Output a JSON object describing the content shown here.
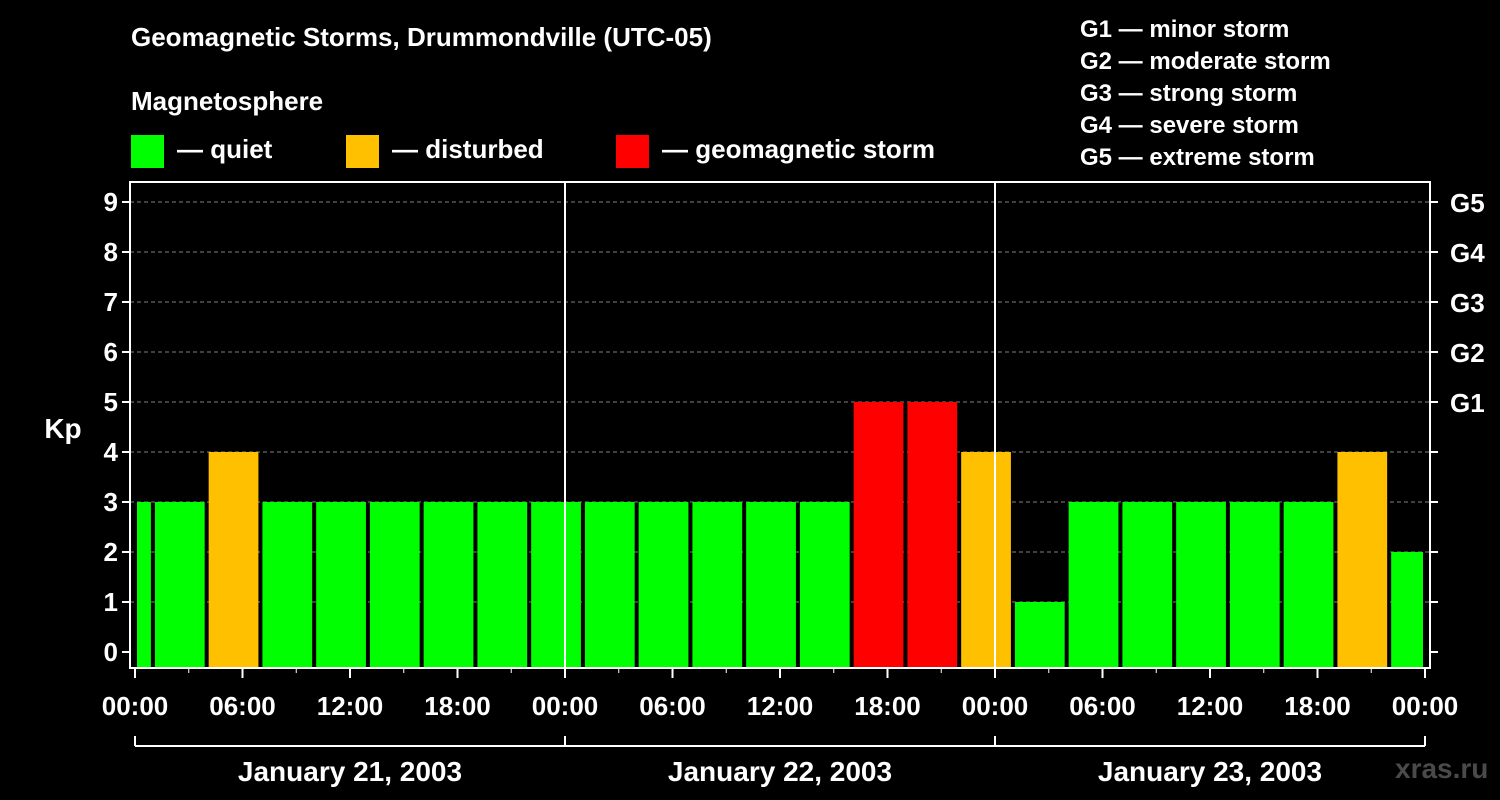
{
  "title": "Geomagnetic Storms, Drummondville (UTC-05)",
  "legend": {
    "heading": "Magnetosphere",
    "items": [
      {
        "label": "— quiet",
        "color": "#00ff00"
      },
      {
        "label": "— disturbed",
        "color": "#ffc000"
      },
      {
        "label": "— geomagnetic storm",
        "color": "#ff0000"
      }
    ]
  },
  "storm_scale": [
    "G1 — minor storm",
    "G2 — moderate storm",
    "G3 — strong storm",
    "G4 — severe storm",
    "G5 — extreme storm"
  ],
  "watermark": "xras.ru",
  "colors": {
    "quiet": "#00ff00",
    "disturbed": "#ffc000",
    "storm": "#ff0000",
    "background": "#000000",
    "grid": "#808080"
  },
  "chart_data": {
    "type": "bar",
    "ylabel": "Kp",
    "ylim": [
      0,
      9
    ],
    "yticks": [
      0,
      1,
      2,
      3,
      4,
      5,
      6,
      7,
      8,
      9
    ],
    "right_axis_labels": [
      {
        "kp": 5,
        "label": "G1"
      },
      {
        "kp": 6,
        "label": "G2"
      },
      {
        "kp": 7,
        "label": "G3"
      },
      {
        "kp": 8,
        "label": "G4"
      },
      {
        "kp": 9,
        "label": "G5"
      }
    ],
    "xlim_hours": [
      0,
      72
    ],
    "xticks": [
      {
        "hour": 0,
        "label": "00:00"
      },
      {
        "hour": 6,
        "label": "06:00"
      },
      {
        "hour": 12,
        "label": "12:00"
      },
      {
        "hour": 18,
        "label": "18:00"
      },
      {
        "hour": 24,
        "label": "00:00"
      },
      {
        "hour": 30,
        "label": "06:00"
      },
      {
        "hour": 36,
        "label": "12:00"
      },
      {
        "hour": 42,
        "label": "18:00"
      },
      {
        "hour": 48,
        "label": "00:00"
      },
      {
        "hour": 54,
        "label": "06:00"
      },
      {
        "hour": 60,
        "label": "12:00"
      },
      {
        "hour": 66,
        "label": "18:00"
      },
      {
        "hour": 72,
        "label": "00:00"
      }
    ],
    "day_separators_hours": [
      24,
      48
    ],
    "days": [
      {
        "label": "January 21, 2003",
        "start_hour": 0,
        "end_hour": 24
      },
      {
        "label": "January 22, 2003",
        "start_hour": 24,
        "end_hour": 48
      },
      {
        "label": "January 23, 2003",
        "start_hour": 48,
        "end_hour": 72
      }
    ],
    "bars": [
      {
        "start_hour": 0,
        "end_hour": 1,
        "kp": 3,
        "level": "quiet"
      },
      {
        "start_hour": 1,
        "end_hour": 4,
        "kp": 3,
        "level": "quiet"
      },
      {
        "start_hour": 4,
        "end_hour": 7,
        "kp": 4,
        "level": "disturbed"
      },
      {
        "start_hour": 7,
        "end_hour": 10,
        "kp": 3,
        "level": "quiet"
      },
      {
        "start_hour": 10,
        "end_hour": 13,
        "kp": 3,
        "level": "quiet"
      },
      {
        "start_hour": 13,
        "end_hour": 16,
        "kp": 3,
        "level": "quiet"
      },
      {
        "start_hour": 16,
        "end_hour": 19,
        "kp": 3,
        "level": "quiet"
      },
      {
        "start_hour": 19,
        "end_hour": 22,
        "kp": 3,
        "level": "quiet"
      },
      {
        "start_hour": 22,
        "end_hour": 25,
        "kp": 3,
        "level": "quiet"
      },
      {
        "start_hour": 25,
        "end_hour": 28,
        "kp": 3,
        "level": "quiet"
      },
      {
        "start_hour": 28,
        "end_hour": 31,
        "kp": 3,
        "level": "quiet"
      },
      {
        "start_hour": 31,
        "end_hour": 34,
        "kp": 3,
        "level": "quiet"
      },
      {
        "start_hour": 34,
        "end_hour": 37,
        "kp": 3,
        "level": "quiet"
      },
      {
        "start_hour": 37,
        "end_hour": 40,
        "kp": 3,
        "level": "quiet"
      },
      {
        "start_hour": 40,
        "end_hour": 43,
        "kp": 5,
        "level": "storm"
      },
      {
        "start_hour": 43,
        "end_hour": 46,
        "kp": 5,
        "level": "storm"
      },
      {
        "start_hour": 46,
        "end_hour": 49,
        "kp": 4,
        "level": "disturbed"
      },
      {
        "start_hour": 49,
        "end_hour": 52,
        "kp": 1,
        "level": "quiet"
      },
      {
        "start_hour": 52,
        "end_hour": 55,
        "kp": 3,
        "level": "quiet"
      },
      {
        "start_hour": 55,
        "end_hour": 58,
        "kp": 3,
        "level": "quiet"
      },
      {
        "start_hour": 58,
        "end_hour": 61,
        "kp": 3,
        "level": "quiet"
      },
      {
        "start_hour": 61,
        "end_hour": 64,
        "kp": 3,
        "level": "quiet"
      },
      {
        "start_hour": 64,
        "end_hour": 67,
        "kp": 3,
        "level": "quiet"
      },
      {
        "start_hour": 67,
        "end_hour": 70,
        "kp": 4,
        "level": "disturbed"
      },
      {
        "start_hour": 70,
        "end_hour": 72,
        "kp": 2,
        "level": "quiet"
      }
    ]
  }
}
